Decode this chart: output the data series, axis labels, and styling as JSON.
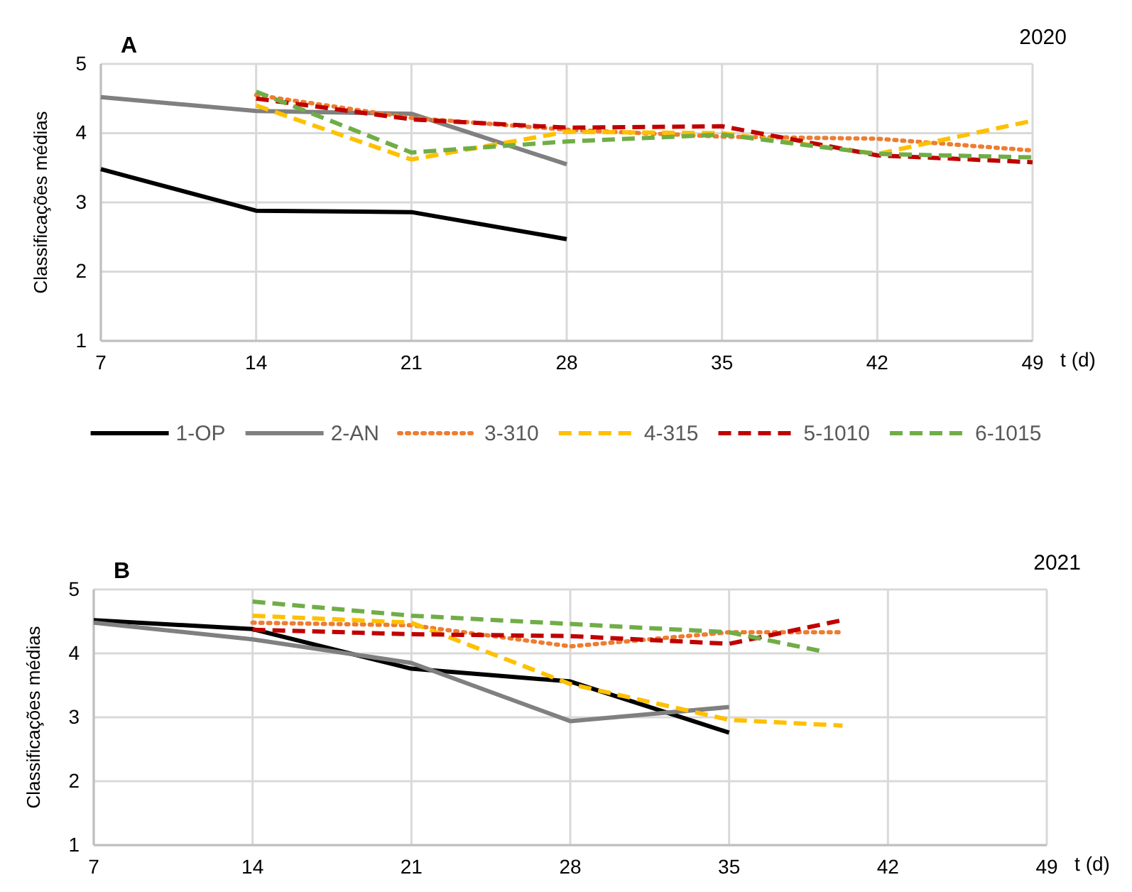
{
  "chart_data": [
    {
      "type": "line",
      "title": "A",
      "annotations": [
        "2020"
      ],
      "xlabel": "t (d)",
      "ylabel": "Classificações médias",
      "x": [
        7,
        14,
        21,
        28,
        35,
        42,
        49
      ],
      "xlim": [
        7,
        49
      ],
      "xticks": [
        7,
        14,
        21,
        28,
        35,
        42,
        49
      ],
      "ylim": [
        1,
        5
      ],
      "yticks": [
        1,
        2,
        3,
        4,
        5
      ],
      "grid": true,
      "legend": "bottom",
      "series": [
        {
          "name": "1-OP",
          "color": "#000000",
          "line_style": "solid",
          "values": [
            3.48,
            2.88,
            2.86,
            2.47,
            null,
            null,
            null
          ]
        },
        {
          "name": "2-AN",
          "color": "#808080",
          "line_style": "solid",
          "values": [
            4.52,
            4.32,
            4.28,
            3.55,
            null,
            null,
            null
          ]
        },
        {
          "name": "3-310",
          "color": "#ed7d31",
          "line_style": "dotted",
          "values": [
            null,
            4.55,
            4.22,
            4.05,
            3.95,
            3.92,
            3.75
          ]
        },
        {
          "name": "4-315",
          "color": "#ffc000",
          "line_style": "dashed",
          "values": [
            null,
            4.4,
            3.62,
            4.02,
            4.0,
            3.7,
            4.18
          ]
        },
        {
          "name": "5-1010",
          "color": "#c00000",
          "line_style": "dashed",
          "values": [
            null,
            4.5,
            4.2,
            4.08,
            4.1,
            3.68,
            3.58
          ]
        },
        {
          "name": "6-1015",
          "color": "#70ad47",
          "line_style": "dashed",
          "values": [
            null,
            4.6,
            3.72,
            3.88,
            3.98,
            3.7,
            3.65
          ]
        }
      ]
    },
    {
      "type": "line",
      "title": "B",
      "annotations": [
        "2021"
      ],
      "xlabel": "t (d)",
      "ylabel": "Classificações médias",
      "xlim": [
        7,
        49
      ],
      "xticks": [
        7,
        14,
        21,
        28,
        35,
        42,
        49
      ],
      "ylim": [
        1,
        5
      ],
      "yticks": [
        1,
        2,
        3,
        4,
        5
      ],
      "grid": true,
      "series": [
        {
          "color": "#000000",
          "line_style": "solid",
          "x": [
            7,
            14,
            21,
            28,
            35
          ],
          "values": [
            4.52,
            4.38,
            3.76,
            3.56,
            2.76
          ]
        },
        {
          "color": "#808080",
          "line_style": "solid",
          "x": [
            7,
            14,
            21,
            28,
            35
          ],
          "values": [
            4.48,
            4.22,
            3.85,
            2.94,
            3.16
          ]
        },
        {
          "color": "#ed7d31",
          "line_style": "dotted",
          "x": [
            14,
            21,
            28,
            35,
            40
          ],
          "values": [
            4.48,
            4.44,
            4.11,
            4.33,
            4.33
          ]
        },
        {
          "color": "#ffc000",
          "line_style": "dashed",
          "x": [
            14,
            21,
            28,
            35,
            40
          ],
          "values": [
            4.59,
            4.48,
            3.52,
            2.96,
            2.87
          ]
        },
        {
          "color": "#c00000",
          "line_style": "dashed",
          "x": [
            14,
            21,
            28,
            35,
            40
          ],
          "values": [
            4.37,
            4.3,
            4.27,
            4.15,
            4.52
          ]
        },
        {
          "color": "#70ad47",
          "line_style": "dashed",
          "x": [
            14,
            21,
            28,
            35,
            39
          ],
          "values": [
            4.81,
            4.59,
            4.46,
            4.33,
            4.04
          ]
        }
      ]
    }
  ]
}
